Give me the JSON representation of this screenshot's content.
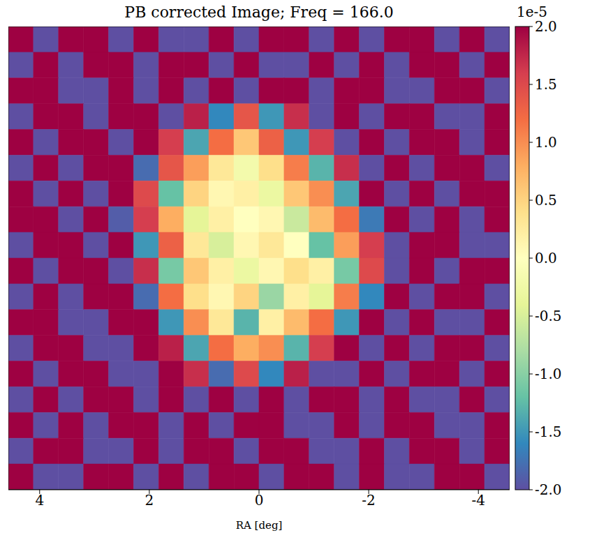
{
  "chart_data": {
    "type": "heatmap",
    "title": "PB corrected Image; Freq = 166.0",
    "x_label": "RA [deg]",
    "xlim": [
      4.57,
      -4.57
    ],
    "xticks": [
      4,
      2,
      0,
      -2,
      -4
    ],
    "ylim": [
      -4.23,
      4.23
    ],
    "tick_labels": "x",
    "cells": [
      [
        2,
        -2,
        2,
        2,
        -2,
        2,
        -2,
        -2,
        2,
        -2,
        2,
        2,
        -2,
        2,
        -2,
        2,
        2,
        -2,
        2,
        -2
      ],
      [
        -2,
        2,
        -2,
        2,
        2,
        -2,
        2,
        2,
        -2,
        2,
        -2,
        -2,
        2,
        -2,
        2,
        -2,
        2,
        2,
        -2,
        2
      ],
      [
        2,
        2,
        -2,
        -2,
        2,
        -2,
        2,
        -2,
        2,
        -2,
        2,
        2,
        -2,
        2,
        2,
        -2,
        -2,
        2,
        2,
        -2
      ],
      [
        -2,
        2,
        2,
        -2,
        2,
        2,
        -2,
        1.8,
        -1.6,
        1.4,
        -1.5,
        1.7,
        -2,
        2,
        -2,
        2,
        2,
        -2,
        -2,
        2
      ],
      [
        2,
        -2,
        2,
        2,
        -2,
        2,
        1.6,
        -1.4,
        1.2,
        0.6,
        1.3,
        -1.5,
        1.6,
        -2,
        2,
        -2,
        2,
        2,
        -2,
        2
      ],
      [
        -2,
        2,
        -2,
        2,
        2,
        -1.8,
        1.4,
        0.9,
        0.3,
        -0.2,
        0.4,
        1.1,
        -1.3,
        1.7,
        -2,
        2,
        -2,
        2,
        2,
        -2
      ],
      [
        2,
        -2,
        2,
        -2,
        2,
        1.5,
        -1.2,
        0.5,
        0.1,
        0.2,
        -0.3,
        0.6,
        1.0,
        -1.4,
        2,
        -2,
        2,
        -2,
        2,
        2
      ],
      [
        2,
        2,
        -2,
        2,
        -1.9,
        1.6,
        0.8,
        -0.4,
        0.2,
        0.0,
        0.1,
        -0.6,
        0.7,
        1.2,
        -1.7,
        2,
        -2,
        2,
        -2,
        2
      ],
      [
        -2,
        2,
        2,
        -2,
        2,
        -1.5,
        1.3,
        0.3,
        -0.5,
        0.1,
        0.3,
        0.0,
        -1.2,
        0.9,
        1.6,
        -2,
        2,
        2,
        -2,
        -2
      ],
      [
        2,
        -2,
        2,
        2,
        -2,
        1.7,
        -1.1,
        0.6,
        0.2,
        -0.3,
        0.1,
        0.4,
        0.2,
        -1.1,
        1.5,
        -2,
        2,
        -2,
        2,
        2
      ],
      [
        -2,
        2,
        -2,
        2,
        2,
        -1.8,
        1.2,
        0.4,
        0.1,
        0.5,
        -0.9,
        0.2,
        -0.4,
        1.1,
        -1.6,
        2,
        -2,
        2,
        2,
        -2
      ],
      [
        2,
        2,
        -2,
        -2,
        2,
        2,
        -1.5,
        1.0,
        0.3,
        -1.3,
        0.2,
        0.7,
        1.2,
        -1.5,
        2,
        -2,
        2,
        -2,
        -2,
        2
      ],
      [
        -2,
        2,
        2,
        -2,
        -2,
        2,
        1.8,
        -1.4,
        1.2,
        0.8,
        1.0,
        -1.3,
        1.6,
        2,
        -2,
        2,
        -2,
        2,
        2,
        -2
      ],
      [
        2,
        -2,
        2,
        2,
        -2,
        -2,
        2,
        1.7,
        -1.8,
        1.5,
        -1.6,
        1.8,
        -2,
        -2,
        2,
        -2,
        2,
        2,
        -2,
        2
      ],
      [
        -2,
        2,
        -2,
        2,
        2,
        -2,
        2,
        -2,
        2,
        -2,
        2,
        -2,
        2,
        2,
        -2,
        2,
        -2,
        -2,
        2,
        -2
      ],
      [
        2,
        -2,
        2,
        -2,
        2,
        2,
        -2,
        2,
        -2,
        2,
        2,
        -2,
        -2,
        2,
        -2,
        2,
        2,
        -2,
        -2,
        2
      ],
      [
        -2,
        2,
        2,
        -2,
        -2,
        2,
        -2,
        2,
        2,
        -2,
        2,
        2,
        -2,
        -2,
        2,
        -2,
        2,
        2,
        -2,
        2
      ],
      [
        2,
        -2,
        -2,
        2,
        2,
        -2,
        2,
        -2,
        2,
        2,
        -2,
        2,
        2,
        -2,
        2,
        -2,
        -2,
        2,
        2,
        -2
      ]
    ],
    "colorbar": {
      "range": [
        -2,
        2
      ],
      "ticks": [
        {
          "value": 2,
          "label": "2.0"
        },
        {
          "value": 1.5,
          "label": "1.5"
        },
        {
          "value": 1,
          "label": "1.0"
        },
        {
          "value": 0.5,
          "label": "0.5"
        },
        {
          "value": 0,
          "label": "0.0"
        },
        {
          "value": -0.5,
          "label": "-0.5"
        },
        {
          "value": -1,
          "label": "-1.0"
        },
        {
          "value": -1.5,
          "label": "-1.5"
        },
        {
          "value": -2,
          "label": "-2.0"
        }
      ],
      "offset_label": "1e-5"
    }
  }
}
